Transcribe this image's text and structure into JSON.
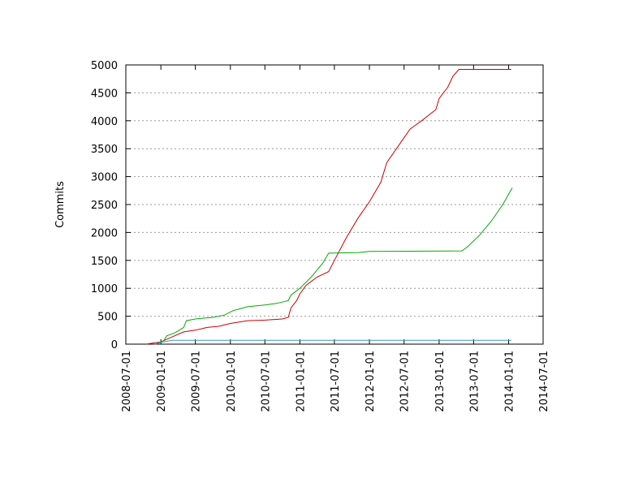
{
  "chart_data": {
    "type": "line",
    "y_label": "Commits",
    "xlim": [
      "2008-07-01",
      "2014-07-01"
    ],
    "xticks": [
      "2008-07-01",
      "2009-01-01",
      "2009-07-01",
      "2010-01-01",
      "2010-07-01",
      "2011-01-01",
      "2011-07-01",
      "2012-01-01",
      "2012-07-01",
      "2013-01-01",
      "2013-07-01",
      "2014-01-01",
      "2014-07-01"
    ],
    "ylim": [
      0,
      5000
    ],
    "yticks": [
      0,
      500,
      1000,
      1500,
      2000,
      2500,
      3000,
      3500,
      4000,
      4500,
      5000
    ],
    "grid": true,
    "series": [
      {
        "color": "#cc0000",
        "x": [
          "2008-10-15",
          "2009-01-01",
          "2009-03-01",
          "2009-05-01",
          "2009-07-01",
          "2009-09-01",
          "2009-11-01",
          "2010-01-01",
          "2010-04-01",
          "2010-07-01",
          "2010-10-01",
          "2010-11-01",
          "2010-11-15",
          "2010-12-15",
          "2011-01-01",
          "2011-02-01",
          "2011-04-01",
          "2011-06-01",
          "2011-07-01",
          "2011-09-01",
          "2011-11-01",
          "2012-01-01",
          "2012-03-01",
          "2012-04-01",
          "2012-06-01",
          "2012-08-01",
          "2012-10-01",
          "2012-12-15",
          "2013-01-01",
          "2013-02-15",
          "2013-03-15",
          "2013-04-15",
          "2014-01-15"
        ],
        "values": [
          0,
          40,
          130,
          220,
          250,
          300,
          320,
          370,
          420,
          430,
          450,
          480,
          650,
          780,
          900,
          1050,
          1200,
          1300,
          1500,
          1900,
          2250,
          2550,
          2900,
          3250,
          3550,
          3850,
          4000,
          4200,
          4400,
          4600,
          4800,
          4920,
          4920
        ]
      },
      {
        "color": "#00aa00",
        "x": [
          "2008-12-01",
          "2009-01-15",
          "2009-02-01",
          "2009-03-15",
          "2009-05-01",
          "2009-05-15",
          "2009-07-01",
          "2009-10-01",
          "2009-12-01",
          "2010-01-15",
          "2010-04-01",
          "2010-07-01",
          "2010-09-01",
          "2010-11-01",
          "2010-11-15",
          "2011-01-01",
          "2011-03-01",
          "2011-05-01",
          "2011-06-01",
          "2011-11-01",
          "2012-01-01",
          "2013-05-01",
          "2013-06-01",
          "2013-08-01",
          "2013-10-01",
          "2013-12-01",
          "2014-01-20"
        ],
        "values": [
          0,
          60,
          150,
          200,
          300,
          420,
          450,
          480,
          520,
          600,
          670,
          700,
          730,
          780,
          880,
          1000,
          1200,
          1450,
          1630,
          1640,
          1660,
          1670,
          1750,
          1950,
          2200,
          2500,
          2800
        ]
      },
      {
        "color": "#3399cc",
        "x": [
          "2008-12-01",
          "2009-01-01",
          "2009-03-01",
          "2014-01-15"
        ],
        "values": [
          0,
          30,
          70,
          70
        ]
      }
    ]
  }
}
